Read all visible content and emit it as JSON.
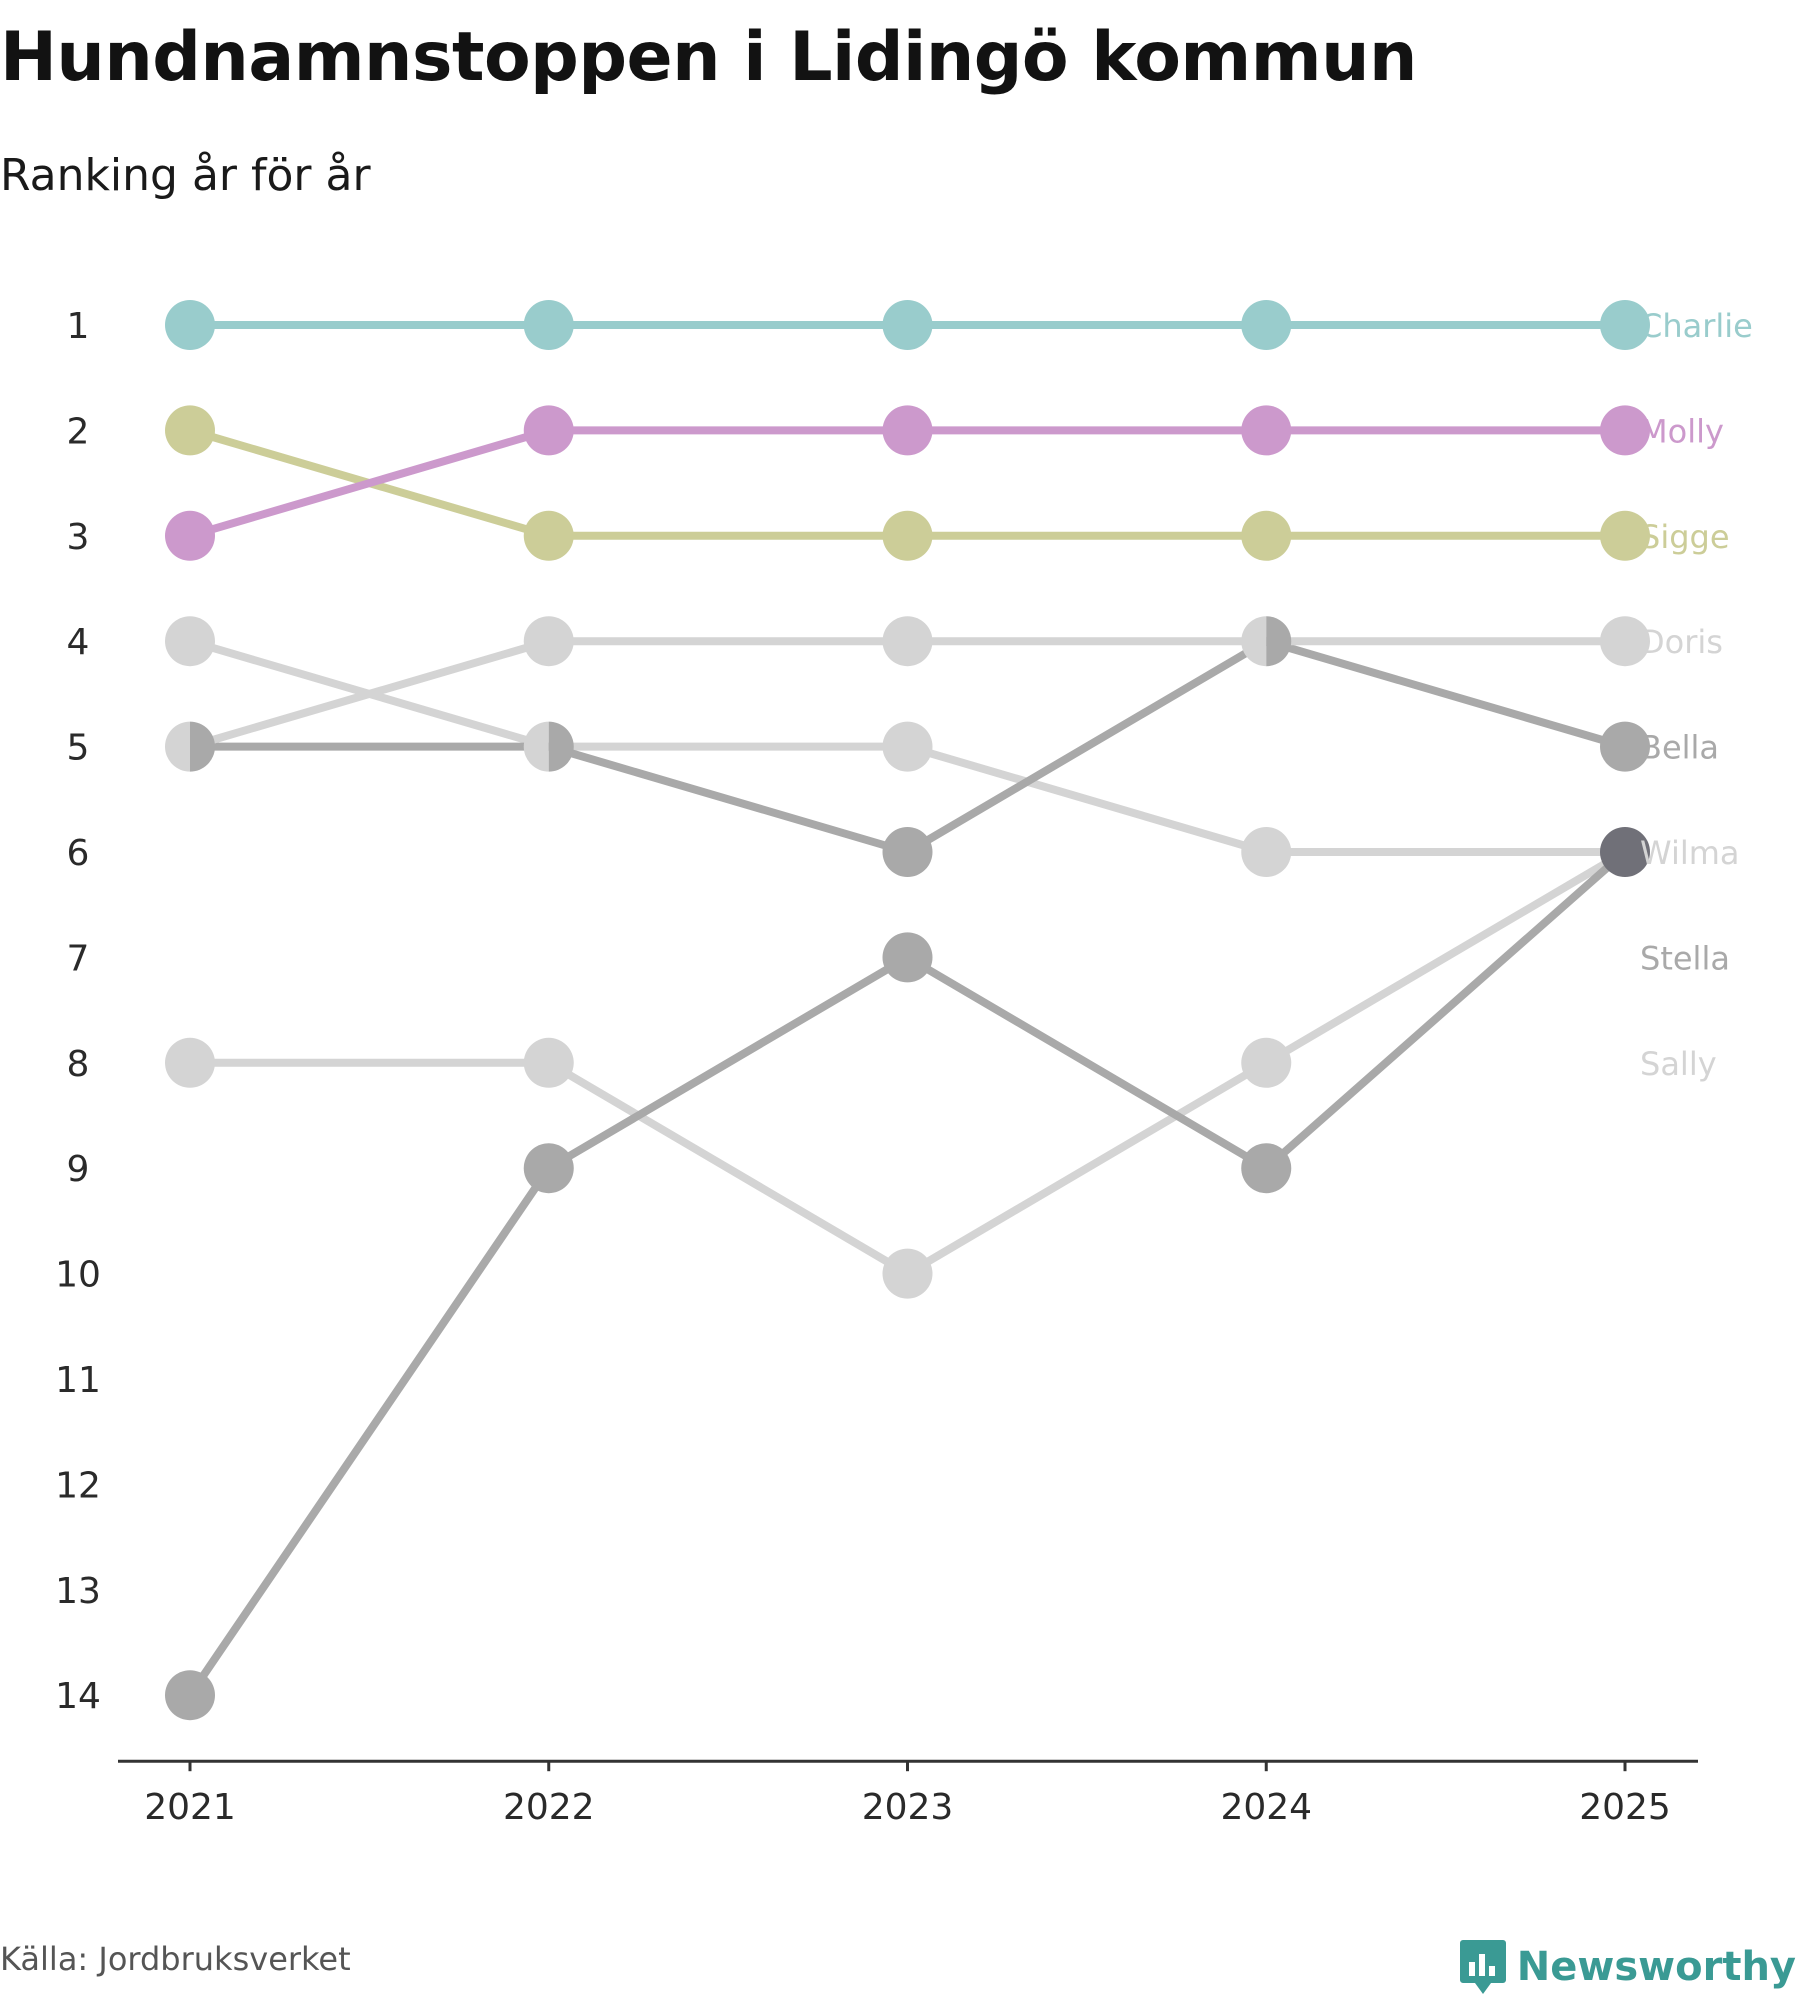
{
  "title": "Hundnamnstoppen i Lidingö kommun",
  "subtitle": "Ranking år för år",
  "source": "Källa: Jordbruksverket",
  "brand": {
    "name": "Newsworthy",
    "icon": "newsworthy-logo-icon",
    "color": "#3a9a94"
  },
  "chart_data": {
    "type": "line",
    "subtype": "bump",
    "x": [
      "2021",
      "2022",
      "2023",
      "2024",
      "2025"
    ],
    "y_ticks": [
      1,
      2,
      3,
      4,
      5,
      6,
      7,
      8,
      9,
      10,
      11,
      12,
      13,
      14
    ],
    "ylim": [
      1,
      14
    ],
    "y_inverted": true,
    "grid": false,
    "series": [
      {
        "name": "Sally",
        "values": [
          8,
          8,
          10,
          8,
          6
        ],
        "color": "#d4d4d4"
      },
      {
        "name": "Stella",
        "values": [
          14,
          9,
          7,
          9,
          6
        ],
        "color": "#a9a9a9"
      },
      {
        "name": "Wilma",
        "values": [
          4,
          5,
          5,
          6,
          6
        ],
        "color": "#d4d4d4"
      },
      {
        "name": "Bella",
        "values": [
          5,
          5,
          6,
          4,
          5
        ],
        "color": "#a9a9a9"
      },
      {
        "name": "Doris",
        "values": [
          5,
          4,
          4,
          4,
          4
        ],
        "color": "#d4d4d4"
      },
      {
        "name": "Sigge",
        "values": [
          2,
          3,
          3,
          3,
          3
        ],
        "color": "#cccd98"
      },
      {
        "name": "Molly",
        "values": [
          3,
          2,
          2,
          2,
          2
        ],
        "color": "#cc99cc"
      },
      {
        "name": "Charlie",
        "values": [
          1,
          1,
          1,
          1,
          1
        ],
        "color": "#99cccc"
      }
    ],
    "end_labels": [
      {
        "name": "Charlie",
        "rank": 1,
        "color": "#99cccc"
      },
      {
        "name": "Molly",
        "rank": 2,
        "color": "#cc99cc"
      },
      {
        "name": "Sigge",
        "rank": 3,
        "color": "#cccd98"
      },
      {
        "name": "Doris",
        "rank": 4,
        "color": "#d4d4d4"
      },
      {
        "name": "Bella",
        "rank": 5,
        "color": "#a9a9a9"
      },
      {
        "name": "Wilma",
        "rank": 6,
        "color": "#d4d4d4"
      },
      {
        "name": "Stella",
        "rank": 7,
        "color": "#a9a9a9"
      },
      {
        "name": "Sally",
        "rank": 8,
        "color": "#d4d4d4"
      }
    ],
    "overlap_marker_color": "#707078"
  }
}
